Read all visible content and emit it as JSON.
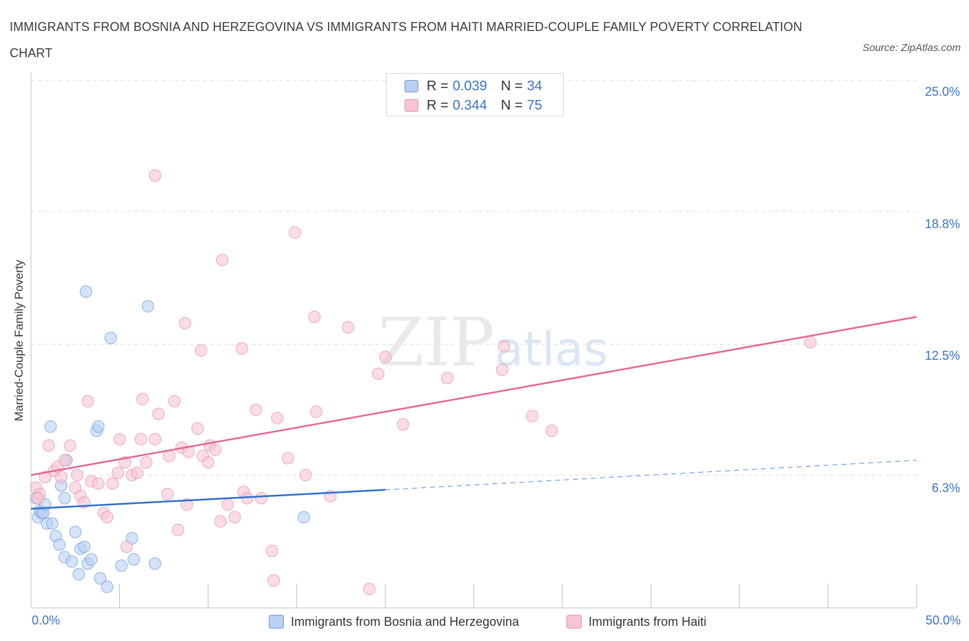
{
  "title": "IMMIGRANTS FROM BOSNIA AND HERZEGOVINA VS IMMIGRANTS FROM HAITI MARRIED-COUPLE FAMILY POVERTY CORRELATION CHART",
  "source": "Source: ZipAtlas.com",
  "watermark": {
    "zip": "ZIP",
    "atlas": "atlas"
  },
  "legend": {
    "rows": [
      {
        "r_label": "R = ",
        "r_value": "0.039",
        "n_label": "N = ",
        "n_value": "34"
      },
      {
        "r_label": "R = ",
        "r_value": "0.344",
        "n_label": "N = ",
        "n_value": "75"
      }
    ]
  },
  "colors": {
    "bosnia_fill": "#b8d0f2",
    "bosnia_stroke": "#6d9ede",
    "bosnia_line": "#2f6fca",
    "haiti_fill": "#f7c4d3",
    "haiti_stroke": "#e691ae",
    "haiti_line": "#e4678f",
    "tick_text": "#3b73c8",
    "grid": "#d9d9d9"
  },
  "chart_data": {
    "type": "scatter",
    "title": "IMMIGRANTS FROM BOSNIA AND HERZEGOVINA VS IMMIGRANTS FROM HAITI MARRIED-COUPLE FAMILY POVERTY CORRELATION CHART",
    "xlabel": "",
    "ylabel": "Married-Couple Family Poverty",
    "xlim": [
      0,
      50
    ],
    "ylim": [
      0,
      25
    ],
    "x_tick_labels": [
      "0.0%",
      "50.0%"
    ],
    "y_ticks": [
      6.3,
      12.5,
      18.8,
      25.0
    ],
    "y_tick_labels": [
      "6.3%",
      "12.5%",
      "18.8%",
      "25.0%"
    ],
    "grid": "horizontal dashed",
    "legend_position": "top-center",
    "series": [
      {
        "name": "Immigrants from Bosnia and Herzegovina",
        "color": "#b8d0f2",
        "points": [
          [
            0.3,
            5.2
          ],
          [
            0.4,
            4.3
          ],
          [
            0.5,
            4.6
          ],
          [
            0.6,
            4.5
          ],
          [
            0.7,
            4.5
          ],
          [
            0.8,
            4.9
          ],
          [
            0.9,
            4.0
          ],
          [
            1.1,
            8.6
          ],
          [
            1.2,
            4.0
          ],
          [
            1.4,
            3.4
          ],
          [
            1.6,
            3.0
          ],
          [
            1.7,
            5.8
          ],
          [
            1.9,
            2.4
          ],
          [
            1.9,
            5.2
          ],
          [
            2.0,
            7.0
          ],
          [
            2.3,
            2.2
          ],
          [
            2.5,
            3.6
          ],
          [
            2.7,
            1.6
          ],
          [
            2.8,
            2.8
          ],
          [
            3.0,
            2.9
          ],
          [
            3.1,
            15.0
          ],
          [
            3.2,
            2.1
          ],
          [
            3.4,
            2.3
          ],
          [
            3.7,
            8.4
          ],
          [
            3.8,
            8.6
          ],
          [
            3.9,
            1.4
          ],
          [
            4.3,
            1.0
          ],
          [
            4.5,
            12.8
          ],
          [
            5.1,
            2.0
          ],
          [
            5.7,
            3.3
          ],
          [
            5.8,
            2.3
          ],
          [
            6.6,
            14.3
          ],
          [
            7.0,
            2.1
          ],
          [
            15.4,
            4.3
          ]
        ]
      },
      {
        "name": "Immigrants from Haiti",
        "color": "#f7c4d3",
        "points": [
          [
            0.3,
            5.7
          ],
          [
            0.5,
            5.4
          ],
          [
            0.8,
            6.2
          ],
          [
            1.0,
            7.7
          ],
          [
            1.3,
            6.5
          ],
          [
            1.5,
            6.7
          ],
          [
            1.7,
            6.2
          ],
          [
            1.9,
            7.0
          ],
          [
            2.2,
            7.7
          ],
          [
            2.5,
            5.7
          ],
          [
            2.6,
            6.3
          ],
          [
            2.8,
            5.3
          ],
          [
            3.0,
            5.0
          ],
          [
            3.2,
            9.8
          ],
          [
            3.4,
            6.0
          ],
          [
            3.8,
            5.9
          ],
          [
            4.1,
            4.5
          ],
          [
            4.3,
            4.3
          ],
          [
            4.6,
            5.9
          ],
          [
            4.9,
            6.4
          ],
          [
            5.0,
            8.0
          ],
          [
            5.3,
            6.9
          ],
          [
            5.4,
            2.9
          ],
          [
            5.7,
            6.3
          ],
          [
            6.0,
            6.4
          ],
          [
            6.2,
            8.0
          ],
          [
            6.3,
            9.9
          ],
          [
            6.5,
            6.9
          ],
          [
            7.0,
            8.0
          ],
          [
            7.0,
            20.5
          ],
          [
            7.2,
            9.2
          ],
          [
            7.7,
            5.4
          ],
          [
            7.8,
            7.2
          ],
          [
            8.1,
            9.8
          ],
          [
            8.3,
            3.7
          ],
          [
            8.5,
            7.6
          ],
          [
            8.7,
            13.5
          ],
          [
            8.8,
            4.9
          ],
          [
            8.9,
            7.4
          ],
          [
            9.4,
            8.5
          ],
          [
            9.6,
            12.2
          ],
          [
            9.7,
            7.2
          ],
          [
            10.0,
            6.9
          ],
          [
            10.1,
            7.7
          ],
          [
            10.4,
            7.5
          ],
          [
            10.7,
            4.1
          ],
          [
            10.8,
            16.5
          ],
          [
            11.1,
            4.9
          ],
          [
            11.5,
            4.3
          ],
          [
            11.9,
            12.3
          ],
          [
            12.0,
            5.5
          ],
          [
            12.2,
            5.2
          ],
          [
            12.7,
            9.4
          ],
          [
            13.0,
            5.2
          ],
          [
            13.6,
            2.7
          ],
          [
            13.7,
            1.3
          ],
          [
            13.9,
            9.0
          ],
          [
            14.5,
            7.1
          ],
          [
            14.9,
            17.8
          ],
          [
            15.5,
            6.3
          ],
          [
            16.0,
            13.8
          ],
          [
            16.1,
            9.3
          ],
          [
            16.9,
            5.3
          ],
          [
            17.9,
            13.3
          ],
          [
            19.1,
            0.9
          ],
          [
            19.6,
            11.1
          ],
          [
            20.0,
            11.9
          ],
          [
            21.0,
            8.7
          ],
          [
            23.5,
            10.9
          ],
          [
            26.6,
            11.3
          ],
          [
            26.7,
            12.4
          ],
          [
            28.3,
            9.1
          ],
          [
            29.4,
            8.4
          ],
          [
            44.0,
            12.6
          ],
          [
            0.4,
            5.2
          ]
        ]
      }
    ],
    "trend_lines": [
      {
        "series": "Immigrants from Bosnia and Herzegovina",
        "solid": [
          [
            0,
            4.7
          ],
          [
            20,
            5.6
          ]
        ],
        "dashed": [
          [
            20,
            5.6
          ],
          [
            50,
            7.0
          ]
        ]
      },
      {
        "series": "Immigrants from Haiti",
        "solid": [
          [
            0,
            6.3
          ],
          [
            50,
            13.8
          ]
        ]
      }
    ]
  }
}
